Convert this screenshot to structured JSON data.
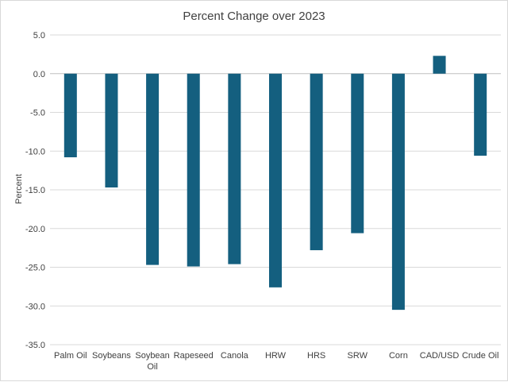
{
  "chart_data": {
    "type": "bar",
    "title": "Percent Change over 2023",
    "xlabel": "",
    "ylabel": "Percent",
    "ylim": [
      -35,
      5
    ],
    "ytick_step": 5,
    "grid": true,
    "bar_color": "#145f7f",
    "categories": [
      "Palm Oil",
      "Soybeans",
      "Soybean Oil",
      "Rapeseed",
      "Canola",
      "HRW",
      "HRS",
      "SRW",
      "Corn",
      "CAD/USD",
      "Crude Oil"
    ],
    "values": [
      -10.8,
      -14.7,
      -24.7,
      -24.9,
      -24.6,
      -27.6,
      -22.8,
      -20.6,
      -30.5,
      2.3,
      -10.6
    ]
  }
}
